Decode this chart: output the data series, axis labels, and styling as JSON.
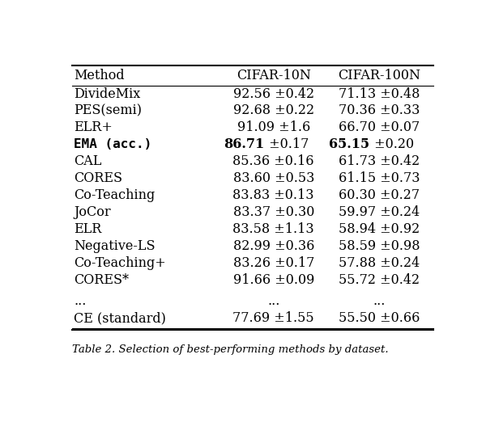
{
  "caption": "Table 2. Selection of best-performing methods by dataset.",
  "columns": [
    "Method",
    "CIFAR-10N",
    "CIFAR-100N"
  ],
  "rows": [
    {
      "method": "DivideMix",
      "bold": false,
      "c10": "92.56",
      "c10e": "0.42",
      "c100": "71.13",
      "c100e": "0.48"
    },
    {
      "method": "PES(semi)",
      "bold": false,
      "c10": "92.68",
      "c10e": "0.22",
      "c100": "70.36",
      "c100e": "0.33"
    },
    {
      "method": "ELR+",
      "bold": false,
      "c10": "91.09",
      "c10e": "1.6",
      "c100": "66.70",
      "c100e": "0.07"
    },
    {
      "method": "EMA (acc.)",
      "bold": true,
      "c10": "86.71",
      "c10e": "0.17",
      "c100": "65.15",
      "c100e": "0.20"
    },
    {
      "method": "CAL",
      "bold": false,
      "c10": "85.36",
      "c10e": "0.16",
      "c100": "61.73",
      "c100e": "0.42"
    },
    {
      "method": "CORES",
      "bold": false,
      "c10": "83.60",
      "c10e": "0.53",
      "c100": "61.15",
      "c100e": "0.73"
    },
    {
      "method": "Co-Teaching",
      "bold": false,
      "c10": "83.83",
      "c10e": "0.13",
      "c100": "60.30",
      "c100e": "0.27"
    },
    {
      "method": "JoCor",
      "bold": false,
      "c10": "83.37",
      "c10e": "0.30",
      "c100": "59.97",
      "c100e": "0.24"
    },
    {
      "method": "ELR",
      "bold": false,
      "c10": "83.58",
      "c10e": "1.13",
      "c100": "58.94",
      "c100e": "0.92"
    },
    {
      "method": "Negative-LS",
      "bold": false,
      "c10": "82.99",
      "c10e": "0.36",
      "c100": "58.59",
      "c100e": "0.98"
    },
    {
      "method": "Co-Teaching+",
      "bold": false,
      "c10": "83.26",
      "c10e": "0.17",
      "c100": "57.88",
      "c100e": "0.24"
    },
    {
      "method": "CORES*",
      "bold": false,
      "c10": "91.66",
      "c10e": "0.09",
      "c100": "55.72",
      "c100e": "0.42"
    },
    {
      "method": "...",
      "bold": false,
      "c10": "...",
      "c10e": "",
      "c100": "...",
      "c100e": ""
    },
    {
      "method": "CE (standard)",
      "bold": false,
      "c10": "77.69",
      "c10e": "1.55",
      "c100": "55.50",
      "c100e": "0.66"
    }
  ],
  "bg_color": "#ffffff",
  "text_color": "#000000",
  "figsize": [
    6.0,
    5.22
  ],
  "dpi": 100
}
